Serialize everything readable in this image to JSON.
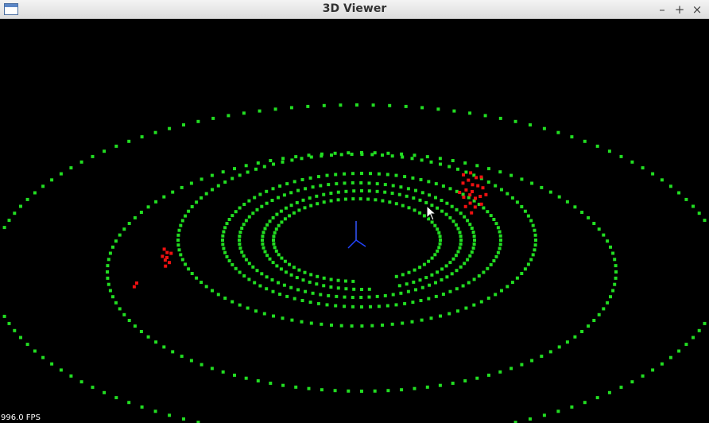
{
  "window": {
    "title": "3D Viewer",
    "minimize": "–",
    "maximize": "+",
    "close": "×"
  },
  "viewport": {
    "fps": "996.0 FPS",
    "point_color": "#22dd22",
    "highlight_color": "#ee1111",
    "background": "#000000"
  }
}
